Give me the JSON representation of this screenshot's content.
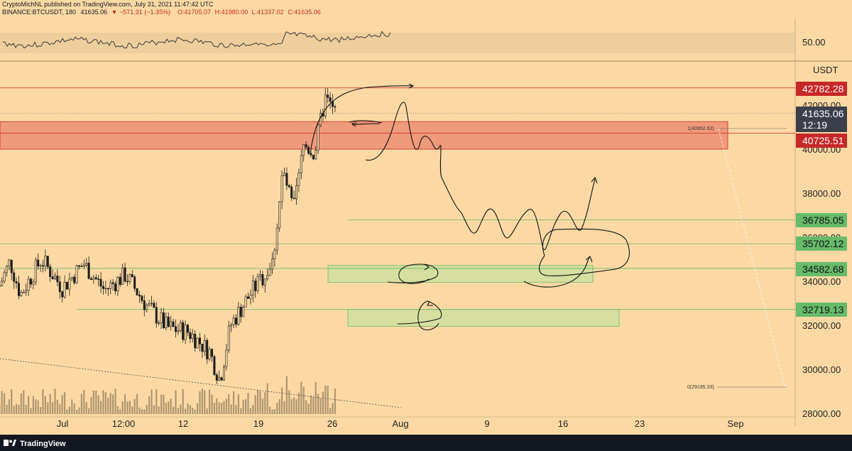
{
  "header": {
    "publisher": "CryptoMichNL",
    "published_line": "CryptoMichNL published on TradingView.com, July 31, 2021 11:47:42 UTC",
    "symbol_line_prefix": "BINANCE:BTCUSDT, 180",
    "last": "41635.06",
    "change": "▼ −571.31 (−1.35%)",
    "open": "O:41705.07",
    "high": "H:41980.00",
    "low": "L:41337.02",
    "close": "C:41635.06"
  },
  "rsi_pane": {
    "level_label": "50.00"
  },
  "price_axis": {
    "unit_label": "USDT",
    "ticks": [
      "42000.00",
      "40000.00",
      "38000.00",
      "36000.00",
      "34000.00",
      "32000.00",
      "30000.00",
      "28000.00"
    ],
    "tags": [
      {
        "label": "42782.28",
        "kind": "resistance"
      },
      {
        "label": "41635.06",
        "kind": "last"
      },
      {
        "label": "12:19",
        "kind": "countdown"
      },
      {
        "label": "40725.51",
        "kind": "resistance"
      },
      {
        "label": "36785.05",
        "kind": "support"
      },
      {
        "label": "35702.12",
        "kind": "support"
      },
      {
        "label": "34582.68",
        "kind": "support"
      },
      {
        "label": "32719.13",
        "kind": "support"
      }
    ]
  },
  "time_axis": {
    "ticks": [
      "Jul",
      "12:00",
      "12",
      "19",
      "26",
      "Aug",
      "9",
      "16",
      "23",
      "Sep"
    ]
  },
  "fib": {
    "level_1": "1(40952.62)",
    "level_0": "0(29195.33)"
  },
  "footer": {
    "brand": "TradingView"
  },
  "colors": {
    "background": "#fcd9a4",
    "candle": "#1c1c1c",
    "resistance": "#c62828",
    "support": "#66bb6a",
    "last_price": "#3b3f4a",
    "resistance_zone": "#ef9a7a",
    "support_zone": "#d6dfa0"
  },
  "chart_data": {
    "type": "candlestick",
    "symbol": "BINANCE:BTCUSDT",
    "interval": "180",
    "ylim": [
      28000,
      43500
    ],
    "x_ticks": [
      "Jul",
      "12:00",
      "12",
      "19",
      "26",
      "Aug",
      "9",
      "16",
      "23",
      "Sep"
    ],
    "price_path": [
      {
        "date": "Jun 29",
        "price": 33800
      },
      {
        "date": "Jun 30",
        "price": 34900
      },
      {
        "date": "Jul 1",
        "price": 33400
      },
      {
        "date": "Jul 3",
        "price": 35000
      },
      {
        "date": "Jul 5",
        "price": 33700
      },
      {
        "date": "Jul 7",
        "price": 34800
      },
      {
        "date": "Jul 9",
        "price": 33600
      },
      {
        "date": "Jul 11",
        "price": 34300
      },
      {
        "date": "Jul 13",
        "price": 32900
      },
      {
        "date": "Jul 15",
        "price": 31900
      },
      {
        "date": "Jul 17",
        "price": 31700
      },
      {
        "date": "Jul 19",
        "price": 30800
      },
      {
        "date": "Jul 20",
        "price": 29500
      },
      {
        "date": "Jul 21",
        "price": 32000
      },
      {
        "date": "Jul 23",
        "price": 33500
      },
      {
        "date": "Jul 25",
        "price": 34800
      },
      {
        "date": "Jul 26",
        "price": 39000
      },
      {
        "date": "Jul 27",
        "price": 37200
      },
      {
        "date": "Jul 28",
        "price": 40200
      },
      {
        "date": "Jul 29",
        "price": 39800
      },
      {
        "date": "Jul 30",
        "price": 42300
      },
      {
        "date": "Jul 31",
        "price": 41635.06
      }
    ],
    "horizontal_levels": [
      {
        "price": 42782.28,
        "role": "resistance"
      },
      {
        "price": 41635.06,
        "role": "last"
      },
      {
        "price": 40725.51,
        "role": "resistance"
      },
      {
        "price": 36785.05,
        "role": "support"
      },
      {
        "price": 35702.12,
        "role": "support"
      },
      {
        "price": 34582.68,
        "role": "support"
      },
      {
        "price": 32719.13,
        "role": "support"
      }
    ],
    "zones": [
      {
        "from": 40000,
        "to": 41250,
        "role": "resistance"
      },
      {
        "from": 33950,
        "to": 34720,
        "role": "support"
      },
      {
        "from": 31950,
        "to": 32720,
        "role": "support"
      }
    ],
    "fibonacci": [
      {
        "level": "1",
        "price": 40952.62
      },
      {
        "level": "0",
        "price": 29195.33
      }
    ]
  }
}
